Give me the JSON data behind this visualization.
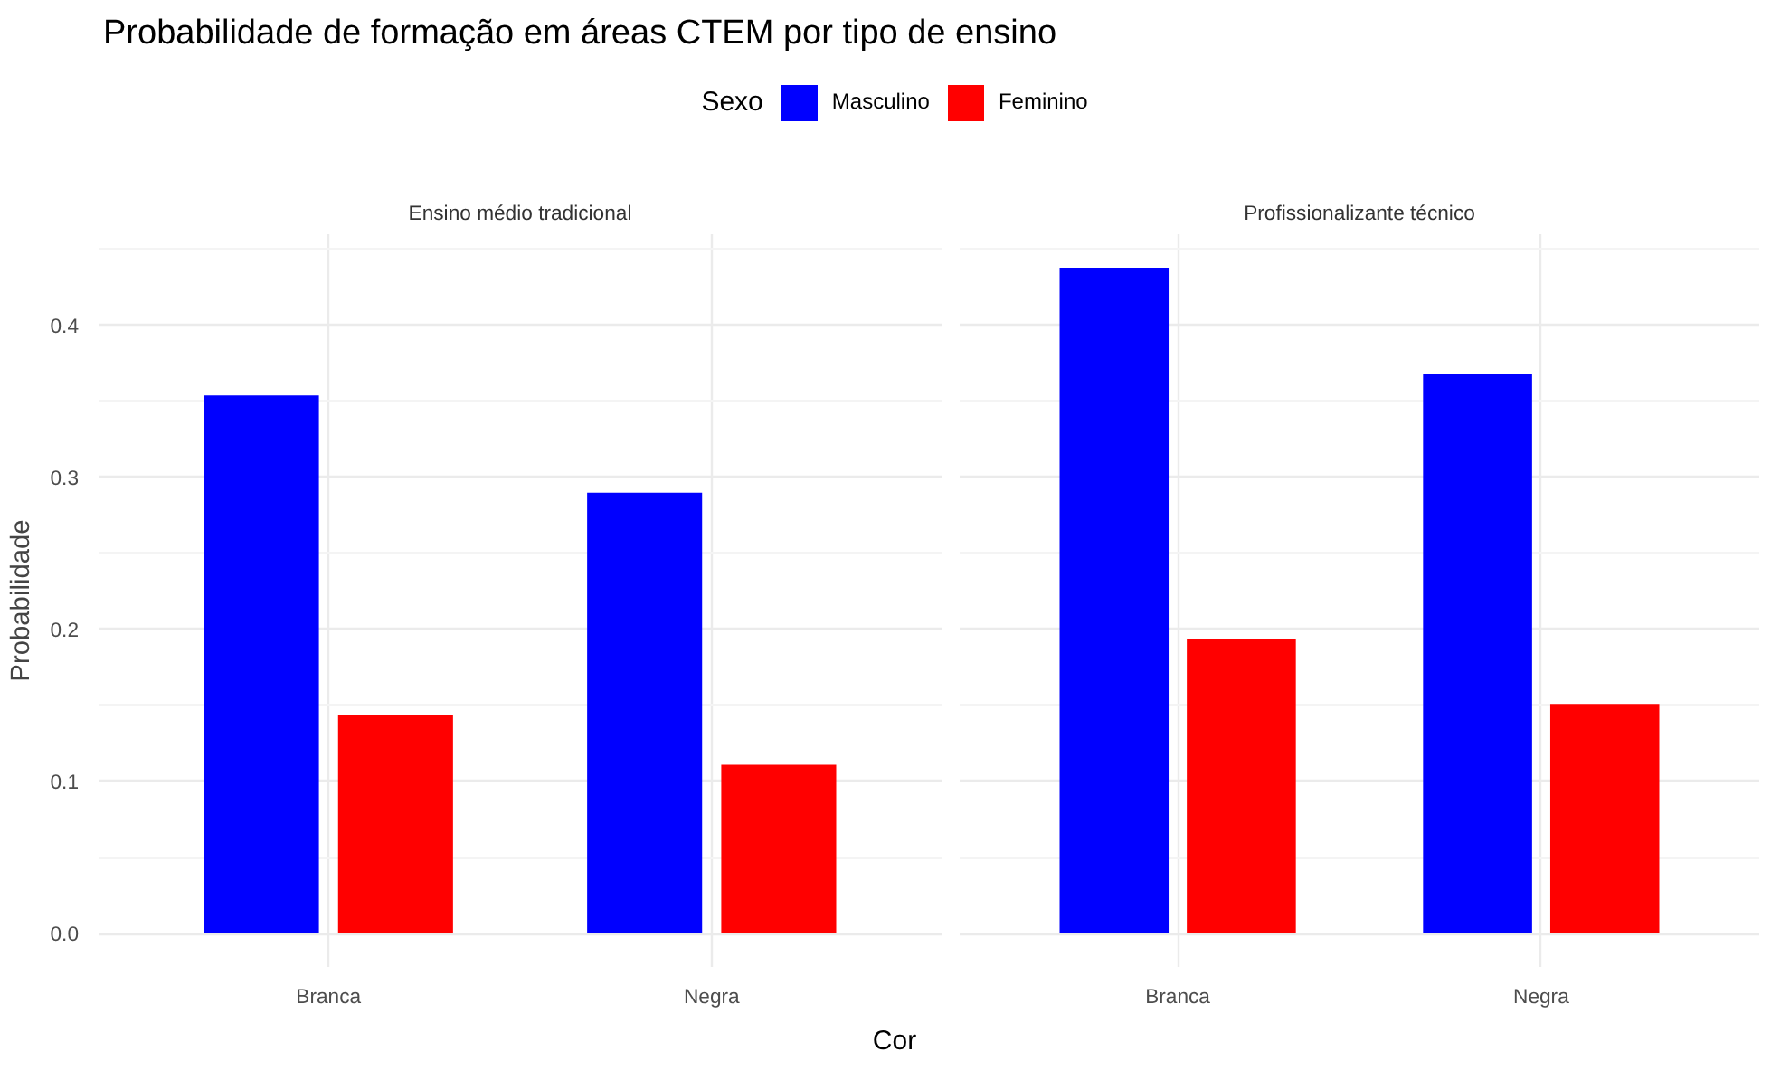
{
  "chart_data": [
    {
      "type": "bar",
      "title": "Ensino médio tradicional",
      "annotations": [
        "Probabilidade de formação em áreas CTEM por tipo de ensino"
      ],
      "legend_title": "Sexo",
      "legend": "top",
      "xlabel": "Cor",
      "ylabel": "Probabilidade",
      "categories": [
        "Branca",
        "Negra"
      ],
      "ylim": [
        -0.022,
        0.46
      ],
      "yticks": [
        {
          "value": 0,
          "label": "0.0"
        },
        0.1,
        0.2,
        0.3,
        0.4
      ],
      "grid": true,
      "series": [
        {
          "name": "Masculino",
          "color": "#0000ff",
          "values": [
            0.354,
            0.29
          ]
        },
        {
          "name": "Feminino",
          "color": "#ff0000",
          "values": [
            0.144,
            0.111
          ]
        }
      ]
    },
    {
      "type": "bar",
      "title": "Profissionalizante técnico",
      "categories": [
        "Branca",
        "Negra"
      ],
      "ylim": [
        -0.022,
        0.46
      ],
      "yticks": [
        {
          "value": 0,
          "label": null
        },
        {
          "value": 0.1,
          "label": null
        },
        {
          "value": 0.2,
          "label": null
        },
        {
          "value": 0.3,
          "label": null
        },
        {
          "value": 0.4,
          "label": null
        }
      ],
      "grid": true,
      "tick_labels": "x",
      "series": [
        {
          "color": "#0000ff",
          "values": [
            0.438,
            0.368
          ]
        },
        {
          "color": "#ff0000",
          "values": [
            0.194,
            0.151
          ]
        }
      ]
    }
  ]
}
